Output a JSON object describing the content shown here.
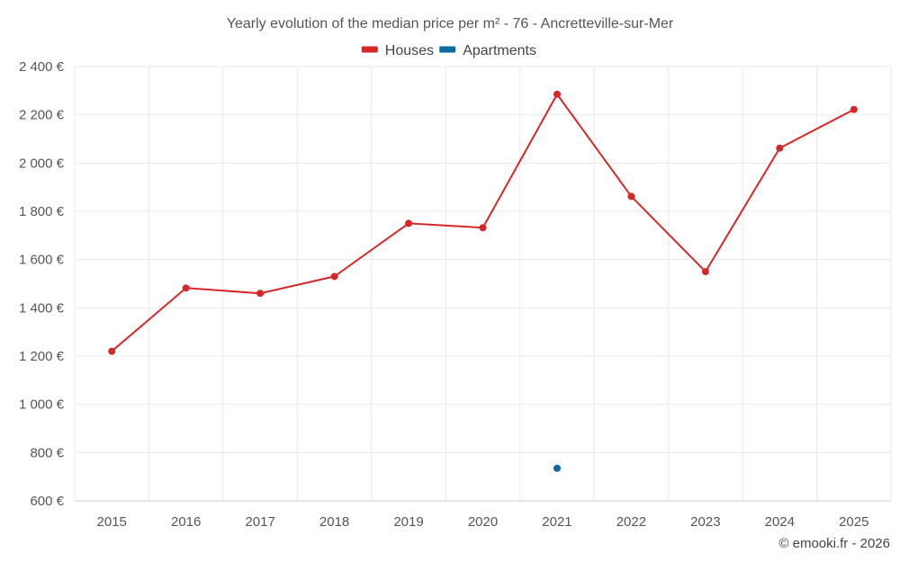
{
  "chart_data": {
    "type": "line",
    "title": "Yearly evolution of the median price per m² - 76 - Ancretteville-sur-Mer",
    "xlabel": "",
    "ylabel": "",
    "categories": [
      "2015",
      "2016",
      "2017",
      "2018",
      "2019",
      "2020",
      "2021",
      "2022",
      "2023",
      "2024",
      "2025"
    ],
    "ylim": [
      600,
      2400
    ],
    "yticks": [
      600,
      800,
      1000,
      1200,
      1400,
      1600,
      1800,
      2000,
      2200,
      2400
    ],
    "ytick_labels": [
      "600 €",
      "800 €",
      "1 000 €",
      "1 200 €",
      "1 400 €",
      "1 600 €",
      "1 800 €",
      "2 000 €",
      "2 200 €",
      "2 400 €"
    ],
    "grid": true,
    "legend_position": "top-center",
    "series": [
      {
        "name": "Houses",
        "color": "#d62728",
        "values": [
          1220,
          1482,
          1460,
          1530,
          1750,
          1732,
          2285,
          1862,
          1550,
          2062,
          2222
        ]
      },
      {
        "name": "Apartments",
        "color": "#0a6aa1",
        "values": [
          null,
          null,
          null,
          null,
          null,
          null,
          735,
          null,
          null,
          null,
          null
        ]
      }
    ]
  },
  "credit": "© emooki.fr - 2026"
}
